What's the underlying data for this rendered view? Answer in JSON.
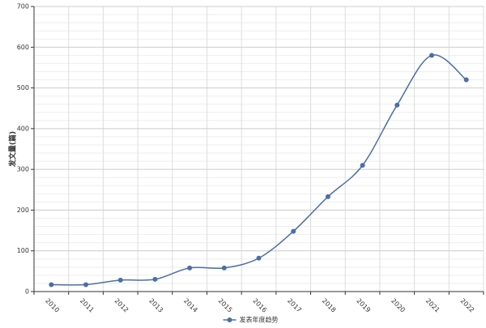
{
  "chart_data": {
    "type": "line",
    "y_label": "发文量(篇)",
    "categories": [
      "2010",
      "2011",
      "2012",
      "2013",
      "2014",
      "2015",
      "2016",
      "2017",
      "2018",
      "2019",
      "2020",
      "2021",
      "2022"
    ],
    "series": [
      {
        "name": "发表年度趋势",
        "color": "#4a6fa5",
        "values": [
          17,
          17,
          28,
          30,
          58,
          58,
          82,
          148,
          233,
          310,
          458,
          580,
          520
        ]
      }
    ],
    "ylim": [
      0,
      700
    ],
    "yticks": [
      0,
      100,
      200,
      300,
      400,
      500,
      600,
      700
    ],
    "grid": true,
    "smooth": true,
    "legend": "bottom"
  }
}
